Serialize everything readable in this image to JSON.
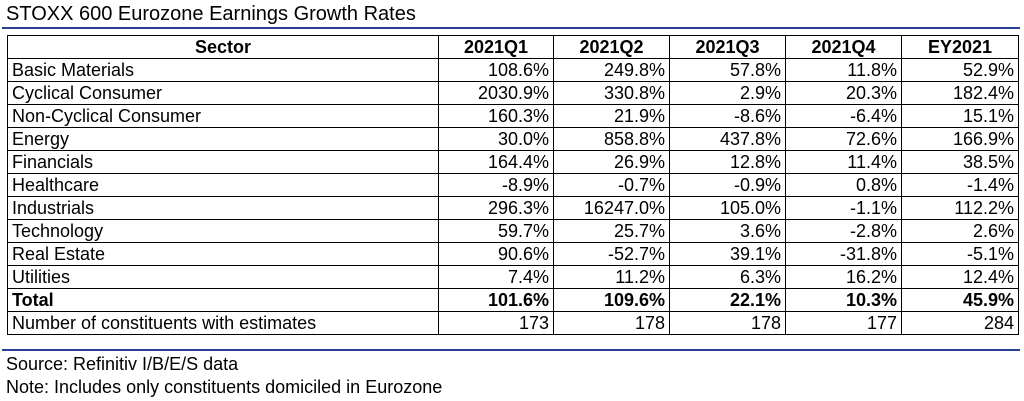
{
  "title": "STOXX 600 Eurozone Earnings Growth Rates",
  "table": {
    "headers": [
      "Sector",
      "2021Q1",
      "2021Q2",
      "2021Q3",
      "2021Q4",
      "EY2021"
    ],
    "rows": [
      [
        "Basic Materials",
        "108.6%",
        "249.8%",
        "57.8%",
        "11.8%",
        "52.9%"
      ],
      [
        "Cyclical Consumer",
        "2030.9%",
        "330.8%",
        "2.9%",
        "20.3%",
        "182.4%"
      ],
      [
        "Non-Cyclical Consumer",
        "160.3%",
        "21.9%",
        "-8.6%",
        "-6.4%",
        "15.1%"
      ],
      [
        "Energy",
        "30.0%",
        "858.8%",
        "437.8%",
        "72.6%",
        "166.9%"
      ],
      [
        "Financials",
        "164.4%",
        "26.9%",
        "12.8%",
        "11.4%",
        "38.5%"
      ],
      [
        "Healthcare",
        "-8.9%",
        "-0.7%",
        "-0.9%",
        "0.8%",
        "-1.4%"
      ],
      [
        "Industrials",
        "296.3%",
        "16247.0%",
        "105.0%",
        "-1.1%",
        "112.2%"
      ],
      [
        "Technology",
        "59.7%",
        "25.7%",
        "3.6%",
        "-2.8%",
        "2.6%"
      ],
      [
        "Real Estate",
        "90.6%",
        "-52.7%",
        "39.1%",
        "-31.8%",
        "-5.1%"
      ],
      [
        "Utilities",
        "7.4%",
        "11.2%",
        "6.3%",
        "16.2%",
        "12.4%"
      ],
      [
        "Total",
        "101.6%",
        "109.6%",
        "22.1%",
        "10.3%",
        "45.9%"
      ],
      [
        "Number of constituents with estimates",
        "173",
        "178",
        "178",
        "177",
        "284"
      ]
    ]
  },
  "notes": {
    "source": "Source: Refinitiv I/B/E/S data",
    "note": "Note: Includes only constituents domiciled in Eurozone"
  },
  "colors": {
    "rule": "#2b3f93"
  }
}
